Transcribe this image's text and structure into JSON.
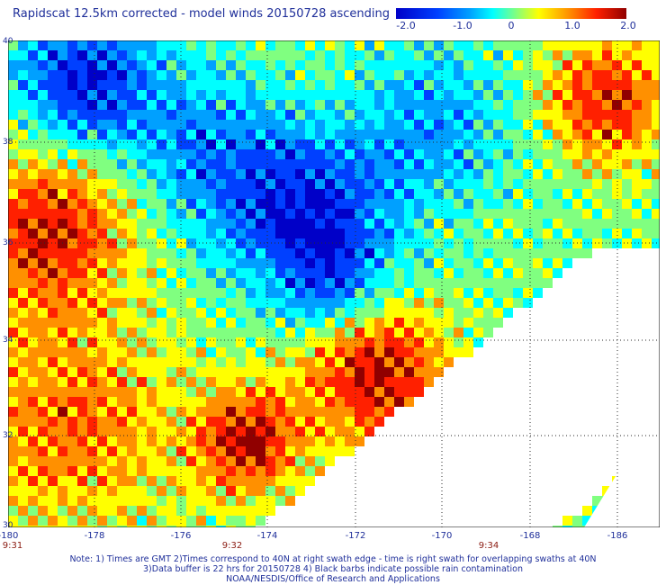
{
  "title": "Rapidscat 12.5km corrected - model winds 20150728 ascending",
  "colorbar": {
    "labels": [
      "-2.0",
      "-1.0",
      "0",
      "1.0",
      "2.0"
    ],
    "min": -2.0,
    "max": 2.0
  },
  "axes": {
    "lon_labels": [
      "-180",
      "-178",
      "-176",
      "-174",
      "-172",
      "-170",
      "-168",
      "-186"
    ],
    "lat_labels": [
      "40",
      "38",
      "36",
      "34",
      "32",
      "30"
    ]
  },
  "time_labels": [
    "9:31",
    "9:32",
    "9:34"
  ],
  "notes": [
    "Note: 1) Times are GMT 2)Times correspond to 40N at right swath edge - time is right swath for overlapping swaths at 40N",
    "3)Data buffer is 22 hrs for 20150728 4) Black barbs indicate possible rain contamination",
    "NOAA/NESDIS/Office of Research and Applications"
  ],
  "colors": {
    "text": "#1f2f9a",
    "time_text": "#8a1a10",
    "scale": [
      "#0000c8",
      "#0040ff",
      "#00a0ff",
      "#00ffff",
      "#80ff80",
      "#ffff00",
      "#ff9000",
      "#ff2000",
      "#900000"
    ]
  }
}
